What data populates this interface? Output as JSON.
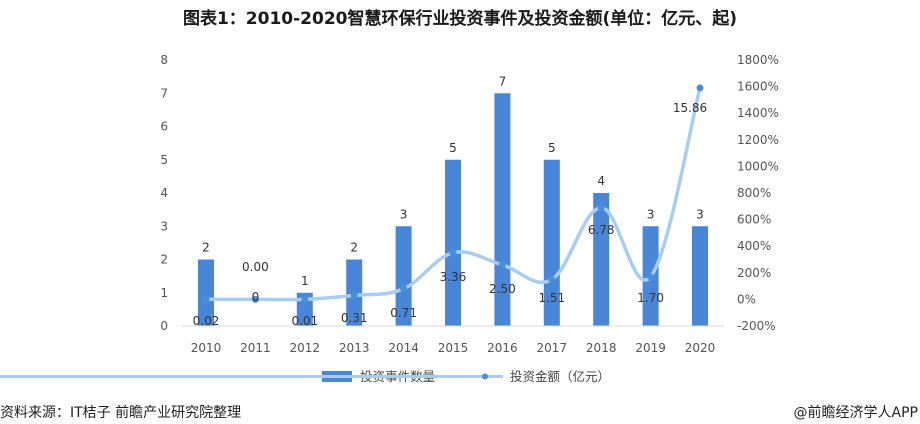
{
  "title": "图表1：2010-2020智慧环保行业投资事件及投资金额(单位：亿元、起)",
  "footer": {
    "source": "资料来源：IT桔子 前瞻产业研究院整理",
    "credit": "@前瞻经济学人APP"
  },
  "colors": {
    "bar": "#4a86d8",
    "line": "#a9cdf0",
    "line_dot": "#4a90d9"
  },
  "chart_data": {
    "type": "bar",
    "categories": [
      "2010",
      "2011",
      "2012",
      "2013",
      "2014",
      "2015",
      "2016",
      "2017",
      "2018",
      "2019",
      "2020"
    ],
    "series": [
      {
        "name": "投资事件数量",
        "type": "bar",
        "axis": "left",
        "values": [
          2,
          0,
          1,
          2,
          3,
          5,
          7,
          5,
          4,
          3,
          3
        ],
        "labels": [
          "2",
          "0",
          "1",
          "2",
          "3",
          "5",
          "7",
          "5",
          "4",
          "3",
          "3"
        ]
      },
      {
        "name": "投资金额（亿元）",
        "type": "line",
        "axis": "right",
        "values": [
          0.02,
          0.0,
          0.01,
          0.31,
          0.71,
          3.36,
          2.5,
          1.51,
          6.78,
          1.7,
          15.86
        ],
        "growth_percent": [
          0,
          0,
          0,
          30,
          80,
          350,
          260,
          150,
          690,
          170,
          1590
        ],
        "labels": [
          "0.02",
          "0.00",
          "0.01",
          "0.31",
          "0.71",
          "3.36",
          "2.50",
          "1.51",
          "6.78",
          "1.70",
          "15.86"
        ]
      }
    ],
    "y_left": {
      "min": 0,
      "max": 8,
      "ticks": [
        "0",
        "1",
        "2",
        "3",
        "4",
        "5",
        "6",
        "7",
        "8"
      ]
    },
    "y_right": {
      "min": -200,
      "max": 1800,
      "ticks": [
        "-200%",
        "0%",
        "200%",
        "400%",
        "600%",
        "800%",
        "1000%",
        "1200%",
        "1400%",
        "1600%",
        "1800%"
      ]
    },
    "legend_position": "bottom-center"
  }
}
